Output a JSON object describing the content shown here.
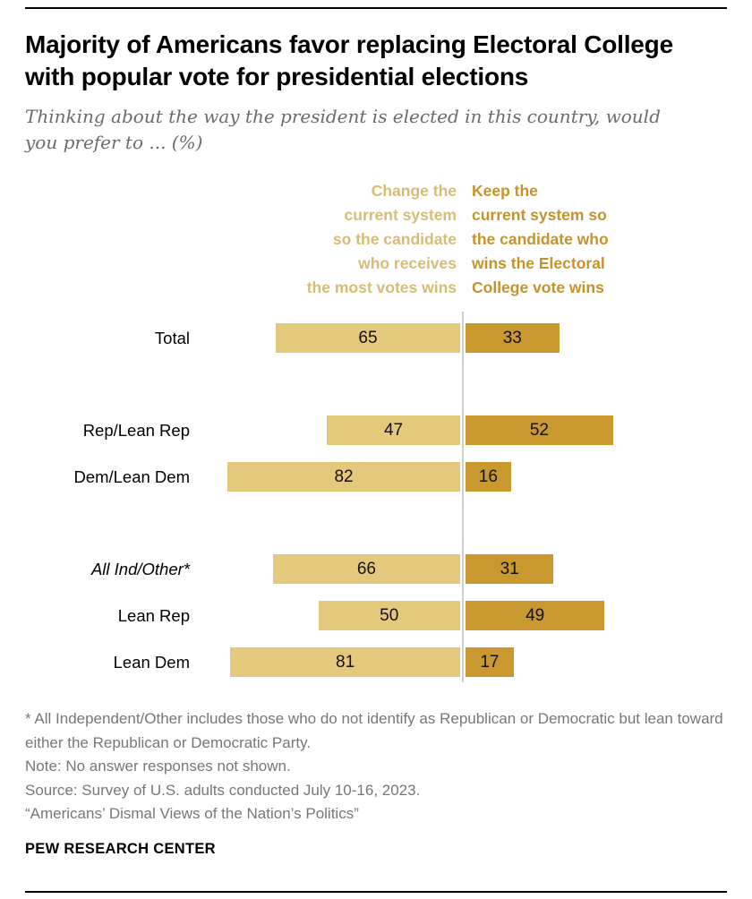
{
  "chart_data": {
    "type": "bar",
    "variant": "horizontal-diverging",
    "title": "Majority of Americans favor replacing Electoral College with popular vote for presidential elections",
    "subtitle": "Thinking about the way the president is elected in this country, would you prefer to ... (%)",
    "categories": [
      "Total",
      "Rep/Lean Rep",
      "Dem/Lean Dem",
      "All Ind/Other*",
      "Lean Rep",
      "Lean Dem"
    ],
    "series": [
      {
        "name": "Change the current system so the candidate who receives the most votes wins",
        "color": "#e4c87c",
        "values": [
          65,
          47,
          82,
          66,
          50,
          81
        ]
      },
      {
        "name": "Keep the current system so the candidate who wins the Electoral College vote wins",
        "color": "#c9982e",
        "values": [
          33,
          52,
          16,
          31,
          49,
          17
        ]
      }
    ],
    "xlim": [
      0,
      100
    ],
    "grid": false,
    "legend_position": "top",
    "legend_display": {
      "left": "Change the\ncurrent system\nso the candidate\nwho receives\nthe most votes wins",
      "right": "Keep the\ncurrent system so\nthe candidate who\nwins the Electoral\nCollege vote wins"
    }
  },
  "footer": {
    "footnote": "* All Independent/Other includes those who do not identify as Republican or Democratic but lean toward either the Republican or Democratic Party.",
    "note": "Note: No answer responses not shown.",
    "source": "Source: Survey of U.S. adults conducted July 10-16, 2023.",
    "report": "“Americans’ Dismal Views of the Nation’s Politics”",
    "brand": "PEW RESEARCH CENTER"
  }
}
